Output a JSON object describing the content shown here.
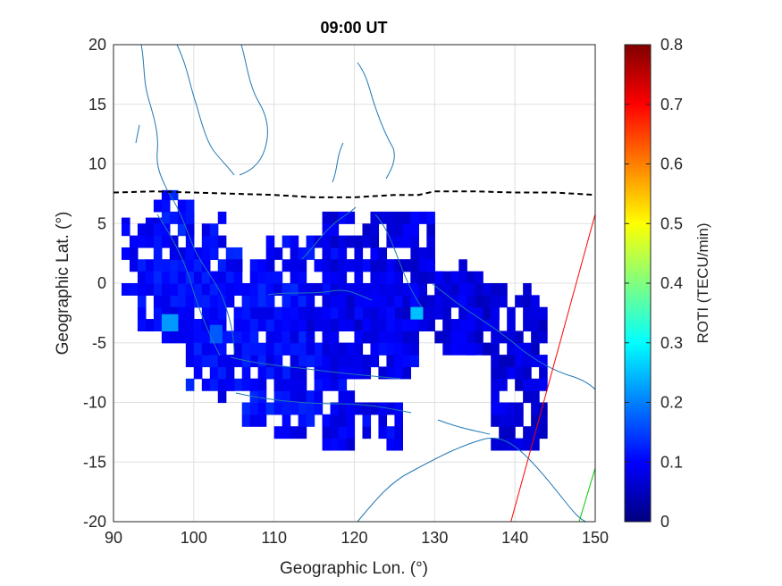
{
  "chart_data": {
    "type": "heatmap",
    "title": "09:00 UT",
    "xlabel": "Geographic Lon. (°)",
    "ylabel": "Geographic Lat. (°)",
    "xlim": [
      90,
      150
    ],
    "ylim": [
      -20,
      20
    ],
    "xticks": [
      "90",
      "100",
      "110",
      "120",
      "130",
      "140",
      "150"
    ],
    "yticks": [
      "20",
      "15",
      "10",
      "5",
      "0",
      "-5",
      "-10",
      "-15",
      "-20"
    ],
    "grid": true,
    "colorbar": {
      "label": "ROTI (TECU/min)",
      "colormap": "jet",
      "range": [
        0,
        0.8
      ],
      "ticks": [
        "0",
        "0.1",
        "0.2",
        "0.3",
        "0.4",
        "0.5",
        "0.6",
        "0.7",
        "0.8"
      ]
    },
    "series": [
      {
        "type": "line",
        "style": "dashed",
        "color": "#000000",
        "x": [
          90,
          95,
          100,
          105,
          110,
          115,
          120,
          125,
          128,
          130,
          135,
          140,
          145,
          150
        ],
        "y": [
          7.6,
          7.7,
          7.6,
          7.5,
          7.4,
          7.2,
          7.2,
          7.4,
          7.4,
          7.7,
          7.7,
          7.6,
          7.6,
          7.4
        ]
      },
      {
        "type": "line",
        "color": "#ff0000",
        "x": [
          139.5,
          150
        ],
        "y": [
          -20,
          5.8
        ]
      },
      {
        "type": "line",
        "color": "#00cc00",
        "x": [
          148,
          150
        ],
        "y": [
          -20,
          -15.5
        ]
      }
    ],
    "roti_cells": [
      {
        "lon_range": [
          91,
          96
        ],
        "lat_range": [
          -1,
          5.5
        ],
        "roti": 0.1
      },
      {
        "lon_range": [
          95,
          100
        ],
        "lat_range": [
          -2,
          7.8
        ],
        "roti": 0.12
      },
      {
        "lon_range": [
          93,
          100
        ],
        "lat_range": [
          -4,
          1
        ],
        "roti": 0.11
      },
      {
        "lon_range": [
          96,
          104
        ],
        "lat_range": [
          -6,
          6
        ],
        "roti": 0.1
      },
      {
        "lon_range": [
          99,
          106
        ],
        "lat_range": [
          -9,
          3
        ],
        "roti": 0.11
      },
      {
        "lon_range": [
          103,
          110
        ],
        "lat_range": [
          -10,
          2
        ],
        "roti": 0.1
      },
      {
        "lon_range": [
          106,
          114
        ],
        "lat_range": [
          -12,
          0
        ],
        "roti": 0.11
      },
      {
        "lon_range": [
          110,
          120
        ],
        "lat_range": [
          -13,
          -5
        ],
        "roti": 0.1
      },
      {
        "lon_range": [
          116,
          126
        ],
        "lat_range": [
          -14,
          -10
        ],
        "roti": 0.09
      },
      {
        "lon_range": [
          108,
          118
        ],
        "lat_range": [
          -8,
          4
        ],
        "roti": 0.1
      },
      {
        "lon_range": [
          114,
          126
        ],
        "lat_range": [
          -8,
          2
        ],
        "roti": 0.09
      },
      {
        "lon_range": [
          116,
          130
        ],
        "lat_range": [
          -4,
          6
        ],
        "roti": 0.08
      },
      {
        "lon_range": [
          120,
          128
        ],
        "lat_range": [
          -8,
          -2
        ],
        "roti": 0.09
      },
      {
        "lon_range": [
          126,
          134
        ],
        "lat_range": [
          -4,
          2
        ],
        "roti": 0.08
      },
      {
        "lon_range": [
          130,
          138
        ],
        "lat_range": [
          -6,
          1
        ],
        "roti": 0.08
      },
      {
        "lon_range": [
          134,
          144
        ],
        "lat_range": [
          -6,
          0
        ],
        "roti": 0.07
      },
      {
        "lon_range": [
          137,
          144
        ],
        "lat_range": [
          -14,
          -6
        ],
        "roti": 0.07
      },
      {
        "lon_range": [
          96,
          98
        ],
        "lat_range": [
          -4,
          -2.6
        ],
        "roti": 0.22
      },
      {
        "lon_range": [
          102,
          103.5
        ],
        "lat_range": [
          -5,
          -3.5
        ],
        "roti": 0.17
      },
      {
        "lon_range": [
          127,
          128.5
        ],
        "lat_range": [
          -3,
          -2
        ],
        "roti": 0.25
      }
    ]
  }
}
